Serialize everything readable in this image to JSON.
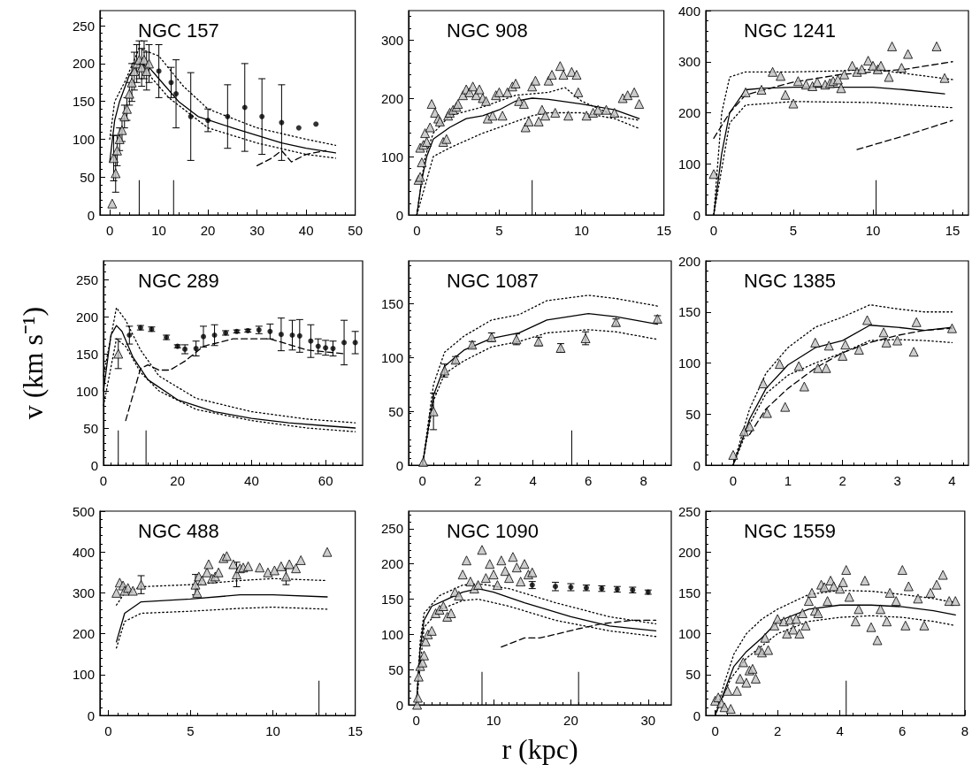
{
  "chart_data": [
    {
      "type": "scatter",
      "title": "NGC 157",
      "xlim": [
        -2,
        50
      ],
      "xticks": [
        0,
        10,
        20,
        30,
        40,
        50
      ],
      "ylim": [
        0,
        270
      ],
      "yticks": [
        0,
        50,
        100,
        150,
        200,
        250
      ],
      "series": [
        {
          "type": "scatter",
          "marker": "triangle",
          "color": "#c0c0c0",
          "x": [
            0.5,
            0.8,
            1.2,
            1.5,
            2,
            2.5,
            3,
            3.5,
            4,
            4.5,
            5,
            5.5,
            6,
            6.5,
            7,
            7.5,
            8
          ],
          "values": [
            15,
            75,
            55,
            85,
            100,
            112,
            130,
            140,
            160,
            175,
            190,
            200,
            205,
            195,
            205,
            190,
            200
          ],
          "errors": [
            null,
            30,
            25,
            20,
            15,
            15,
            15,
            15,
            15,
            25,
            25,
            25,
            25,
            25,
            25,
            25,
            25
          ]
        },
        {
          "type": "scatter",
          "marker": "circle",
          "color": "#000000",
          "x": [
            10,
            12.5,
            13.5,
            16.5,
            20,
            24,
            27.5,
            31,
            35,
            38.5,
            42
          ],
          "values": [
            190,
            175,
            160,
            130,
            125,
            130,
            142,
            130,
            122,
            115,
            120
          ],
          "errors": [
            35,
            20,
            45,
            58,
            15,
            42,
            58,
            50,
            50,
            null,
            null
          ]
        },
        {
          "type": "line",
          "marker": "none",
          "line_style": "solid",
          "color": "#000000",
          "x": [
            0,
            1,
            2,
            4,
            6,
            8,
            10,
            14,
            18,
            25,
            30,
            35,
            40,
            46
          ],
          "values": [
            70,
            125,
            150,
            185,
            200,
            195,
            180,
            150,
            130,
            115,
            105,
            95,
            88,
            82
          ]
        },
        {
          "type": "line",
          "marker": "none",
          "line_style": "dotted",
          "color": "#000000",
          "x": [
            0,
            1,
            3,
            6,
            10,
            15,
            20,
            30,
            40,
            46
          ],
          "values": [
            100,
            150,
            175,
            220,
            210,
            170,
            140,
            115,
            100,
            92
          ]
        },
        {
          "type": "line",
          "marker": "none",
          "line_style": "dotted",
          "color": "#000000",
          "x": [
            8,
            12,
            20,
            30,
            40,
            46
          ],
          "values": [
            185,
            155,
            115,
            95,
            80,
            75
          ]
        },
        {
          "type": "line",
          "marker": "none",
          "line_style": "dashed",
          "color": "#000000",
          "x": [
            30,
            33,
            35,
            37,
            40,
            44
          ],
          "values": [
            65,
            75,
            85,
            70,
            80,
            85
          ]
        }
      ],
      "ref_lines": [
        {
          "axis": "x",
          "value": 6
        },
        {
          "axis": "x",
          "value": 13
        }
      ]
    },
    {
      "type": "scatter",
      "title": "NGC 908",
      "xlim": [
        -0.5,
        15
      ],
      "xticks": [
        0,
        5,
        10,
        15
      ],
      "ylim": [
        0,
        350
      ],
      "yticks": [
        0,
        100,
        200,
        300
      ],
      "series": [
        {
          "type": "scatter",
          "marker": "triangle",
          "color": "#c0c0c0",
          "x": [
            0.1,
            0.2,
            0.3,
            0.2,
            0.4,
            0.5,
            0.6,
            0.8,
            0.9,
            1.1,
            1.3,
            1.4,
            1.6,
            1.8,
            1.9,
            2.0,
            2.2,
            2.4,
            2.5,
            2.8,
            3.0,
            3.2,
            3.4,
            3.6,
            3.8,
            4.0,
            4.2,
            4.3,
            4.6,
            4.8,
            5.0,
            5.2,
            5.5,
            5.8,
            6.0,
            6.2,
            6.5,
            6.6,
            6.8,
            7.0,
            7.2,
            7.4,
            7.6,
            7.8,
            8.0,
            8.2,
            8.4,
            8.7,
            8.9,
            9.2,
            9.4,
            9.7,
            9.8,
            10.3,
            10.7,
            11,
            11.5,
            12,
            12.5,
            12.8,
            13.2,
            13.5
          ],
          "values": [
            60,
            65,
            90,
            115,
            120,
            140,
            125,
            150,
            190,
            175,
            165,
            160,
            125,
            130,
            170,
            175,
            180,
            185,
            190,
            205,
            215,
            210,
            220,
            205,
            215,
            200,
            195,
            165,
            170,
            205,
            210,
            170,
            210,
            220,
            225,
            195,
            190,
            150,
            160,
            220,
            230,
            160,
            180,
            170,
            230,
            240,
            175,
            255,
            240,
            170,
            245,
            240,
            210,
            170,
            175,
            180,
            180,
            175,
            200,
            205,
            210,
            190
          ]
        },
        {
          "type": "line",
          "marker": "none",
          "line_style": "solid",
          "color": "#000000",
          "x": [
            0,
            0.3,
            0.6,
            1,
            2,
            3,
            4,
            5,
            6,
            7,
            8,
            10,
            12,
            13.5
          ],
          "values": [
            0,
            60,
            100,
            130,
            150,
            165,
            170,
            180,
            195,
            200,
            198,
            190,
            180,
            165
          ]
        },
        {
          "type": "line",
          "marker": "none",
          "line_style": "dotted",
          "color": "#000000",
          "x": [
            0,
            0.5,
            1,
            2,
            4,
            6,
            8,
            9,
            10,
            12,
            13.5
          ],
          "values": [
            0,
            100,
            140,
            170,
            185,
            205,
            210,
            218,
            195,
            170,
            162
          ]
        },
        {
          "type": "line",
          "marker": "none",
          "line_style": "dotted",
          "color": "#000000",
          "x": [
            0,
            1,
            2,
            4,
            6,
            7,
            8,
            10,
            12,
            13.5
          ],
          "values": [
            0,
            100,
            115,
            140,
            160,
            170,
            175,
            175,
            165,
            148
          ]
        }
      ],
      "ref_lines": [
        {
          "axis": "x",
          "value": 7
        }
      ]
    },
    {
      "type": "scatter",
      "title": "NGC 1241",
      "xlim": [
        -0.5,
        16
      ],
      "xticks": [
        0,
        5,
        10,
        15
      ],
      "ylim": [
        0,
        400
      ],
      "yticks": [
        0,
        100,
        200,
        300,
        400
      ],
      "series": [
        {
          "type": "scatter",
          "marker": "triangle",
          "color": "#c0c0c0",
          "x": [
            0,
            2,
            3,
            3.7,
            4.2,
            4.5,
            5.0,
            5.3,
            5.8,
            6.2,
            6.5,
            7,
            7.3,
            7.5,
            7.8,
            8.0,
            8.2,
            8.7,
            9,
            9.3,
            9.7,
            10,
            10.3,
            10.5,
            11,
            11.2,
            11.8,
            12.2,
            14,
            14.5
          ],
          "values": [
            80,
            240,
            245,
            280,
            272,
            235,
            218,
            262,
            255,
            252,
            260,
            255,
            258,
            262,
            265,
            248,
            275,
            292,
            280,
            285,
            302,
            292,
            285,
            292,
            270,
            330,
            288,
            315,
            330,
            268
          ]
        },
        {
          "type": "line",
          "marker": "none",
          "line_style": "solid",
          "color": "#000000",
          "x": [
            0,
            0.5,
            1,
            2,
            3,
            5,
            7,
            10,
            12,
            14.5
          ],
          "values": [
            0,
            120,
            200,
            245,
            248,
            250,
            250,
            250,
            245,
            237
          ]
        },
        {
          "type": "line",
          "marker": "none",
          "line_style": "dotted",
          "color": "#000000",
          "x": [
            0,
            0.5,
            1,
            2,
            5,
            8,
            10,
            15
          ],
          "values": [
            0,
            200,
            270,
            280,
            280,
            282,
            285,
            265
          ]
        },
        {
          "type": "line",
          "marker": "none",
          "line_style": "dotted",
          "color": "#000000",
          "x": [
            0,
            1,
            2,
            5,
            10,
            15
          ],
          "values": [
            0,
            180,
            215,
            222,
            220,
            210
          ]
        },
        {
          "type": "line",
          "marker": "none",
          "line_style": "dashed",
          "color": "#000000",
          "x": [
            0,
            1,
            2,
            5,
            8,
            12,
            15
          ],
          "values": [
            150,
            200,
            235,
            260,
            275,
            285,
            300
          ]
        },
        {
          "type": "line",
          "marker": "none",
          "line_style": "dashed",
          "color": "#000000",
          "x": [
            9,
            12,
            15
          ],
          "values": [
            128,
            155,
            185
          ]
        }
      ],
      "ref_lines": [
        {
          "axis": "x",
          "value": 10.2
        }
      ]
    },
    {
      "type": "scatter",
      "title": "NGC 289",
      "ylabel": "v (km s⁻¹)",
      "xlim": [
        0,
        70
      ],
      "xticks": [
        0,
        20,
        40,
        60
      ],
      "ylim": [
        0,
        275
      ],
      "yticks": [
        0,
        50,
        100,
        150,
        200,
        250
      ],
      "series": [
        {
          "type": "scatter",
          "marker": "triangle",
          "color": "#c0c0c0",
          "x": [
            4
          ],
          "values": [
            150
          ],
          "errors": [
            20
          ]
        },
        {
          "type": "scatter",
          "marker": "circle",
          "color": "#000000",
          "x": [
            7,
            10,
            13,
            17,
            20,
            22,
            25,
            27,
            30,
            33,
            36,
            39,
            42,
            45,
            48,
            51,
            53,
            56,
            58,
            60,
            62,
            65,
            68
          ],
          "values": [
            175,
            185,
            183,
            172,
            160,
            156,
            157,
            173,
            175,
            178,
            180,
            181,
            182,
            180,
            176,
            175,
            174,
            167,
            160,
            158,
            157,
            165,
            165
          ],
          "errors": [
            12,
            3,
            3,
            3,
            2,
            6,
            10,
            14,
            14,
            3,
            2,
            2,
            5,
            10,
            22,
            20,
            22,
            22,
            10,
            10,
            10,
            30,
            15
          ]
        },
        {
          "type": "line",
          "marker": "none",
          "line_style": "solid",
          "color": "#000000",
          "x": [
            0,
            2,
            3.5,
            5,
            8,
            12,
            20,
            30,
            40,
            50,
            60,
            68
          ],
          "values": [
            100,
            175,
            188,
            180,
            145,
            115,
            88,
            72,
            63,
            57,
            53,
            50
          ]
        },
        {
          "type": "line",
          "marker": "none",
          "line_style": "dotted",
          "color": "#000000",
          "x": [
            0,
            3.5,
            6,
            10,
            15,
            25,
            40,
            55,
            68
          ],
          "values": [
            120,
            212,
            195,
            155,
            120,
            90,
            72,
            62,
            57
          ]
        },
        {
          "type": "line",
          "marker": "none",
          "line_style": "dotted",
          "color": "#000000",
          "x": [
            0,
            3.5,
            6,
            10,
            15,
            25,
            40,
            55,
            68
          ],
          "values": [
            80,
            170,
            160,
            125,
            100,
            75,
            60,
            50,
            45
          ]
        },
        {
          "type": "line",
          "marker": "none",
          "line_style": "dashed",
          "color": "#000000",
          "x": [
            6,
            8,
            10,
            12,
            15,
            18,
            22,
            27,
            35,
            45,
            55,
            65
          ],
          "values": [
            60,
            95,
            130,
            135,
            128,
            128,
            140,
            160,
            170,
            170,
            155,
            150
          ]
        }
      ],
      "ref_lines": [
        {
          "axis": "x",
          "value": 4
        },
        {
          "axis": "x",
          "value": 11.5
        }
      ]
    },
    {
      "type": "scatter",
      "title": "NGC 1087",
      "xlim": [
        -0.5,
        9
      ],
      "xticks": [
        0,
        2,
        4,
        6,
        8
      ],
      "ylim": [
        0,
        190
      ],
      "yticks": [
        0,
        50,
        100,
        150
      ],
      "series": [
        {
          "type": "scatter",
          "marker": "triangle",
          "color": "#c0c0c0",
          "x": [
            0.03,
            0.4,
            0.8,
            1.2,
            1.8,
            2.5,
            3.4,
            4.2,
            5.0,
            5.9,
            7,
            8.5
          ],
          "values": [
            3,
            50,
            88,
            98,
            112,
            119,
            117,
            115,
            109,
            118,
            133,
            136
          ],
          "errors": [
            null,
            17,
            6,
            3,
            3,
            4,
            5,
            4,
            4,
            6,
            3,
            3
          ]
        },
        {
          "type": "line",
          "marker": "none",
          "line_style": "solid",
          "color": "#000000",
          "x": [
            0,
            0.4,
            0.8,
            1.5,
            2.5,
            3.5,
            4.5,
            6,
            7,
            8.5
          ],
          "values": [
            0,
            65,
            92,
            107,
            118,
            123,
            135,
            141,
            138,
            131
          ]
        },
        {
          "type": "line",
          "marker": "none",
          "line_style": "dotted",
          "color": "#000000",
          "x": [
            0,
            0.4,
            0.8,
            1.5,
            2.5,
            3.5,
            4.5,
            6,
            7,
            8.5
          ],
          "values": [
            0,
            75,
            105,
            120,
            135,
            140,
            153,
            158,
            155,
            148
          ]
        },
        {
          "type": "line",
          "marker": "none",
          "line_style": "dotted",
          "color": "#000000",
          "x": [
            0,
            0.4,
            0.8,
            1.5,
            2.5,
            3.5,
            4.5,
            6,
            7,
            8.5
          ],
          "values": [
            0,
            60,
            85,
            97,
            110,
            115,
            123,
            126,
            124,
            117
          ]
        }
      ],
      "ref_lines": [
        {
          "axis": "x",
          "value": 5.4
        }
      ]
    },
    {
      "type": "scatter",
      "title": "NGC 1385",
      "xlim": [
        -0.5,
        4.3
      ],
      "xticks": [
        0,
        1,
        2,
        3,
        4
      ],
      "ylim": [
        0,
        200
      ],
      "yticks": [
        0,
        50,
        100,
        150,
        200
      ],
      "series": [
        {
          "type": "scatter",
          "marker": "triangle",
          "color": "#c0c0c0",
          "x": [
            0,
            0.2,
            0.3,
            0.55,
            0.62,
            0.85,
            0.95,
            1.2,
            1.3,
            1.5,
            1.55,
            1.7,
            1.75,
            2.0,
            2.05,
            2.3,
            2.45,
            2.75,
            2.8,
            3.0,
            3.3,
            3.35,
            4
          ],
          "values": [
            10,
            33,
            38,
            80,
            51,
            99,
            57,
            97,
            77,
            120,
            95,
            95,
            117,
            107,
            118,
            113,
            142,
            130,
            120,
            122,
            111,
            140,
            134
          ]
        },
        {
          "type": "line",
          "marker": "none",
          "line_style": "solid",
          "color": "#000000",
          "x": [
            0,
            0.3,
            0.6,
            1,
            1.5,
            2,
            2.5,
            3,
            3.5,
            4
          ],
          "values": [
            0,
            45,
            75,
            98,
            115,
            122,
            137,
            135,
            132,
            135
          ]
        },
        {
          "type": "line",
          "marker": "none",
          "line_style": "dotted",
          "color": "#000000",
          "x": [
            0,
            0.3,
            0.6,
            1,
            1.5,
            2,
            2.5,
            3,
            3.5,
            4
          ],
          "values": [
            0,
            55,
            90,
            115,
            135,
            145,
            157,
            153,
            150,
            150
          ]
        },
        {
          "type": "line",
          "marker": "none",
          "line_style": "dotted",
          "color": "#000000",
          "x": [
            0,
            0.3,
            0.6,
            1,
            1.5,
            2,
            2.5,
            3,
            3.5,
            4
          ],
          "values": [
            0,
            40,
            70,
            88,
            100,
            110,
            122,
            123,
            122,
            120
          ]
        },
        {
          "type": "line",
          "marker": "none",
          "line_style": "dashed",
          "color": "#000000",
          "x": [
            0.3,
            0.6,
            1,
            1.5,
            2,
            2.5,
            3,
            3.5,
            4
          ],
          "values": [
            30,
            55,
            75,
            95,
            110,
            120,
            127,
            132,
            134
          ]
        }
      ]
    },
    {
      "type": "scatter",
      "title": "NGC 488",
      "xlim": [
        -0.5,
        15
      ],
      "xticks": [
        0,
        5,
        10,
        15
      ],
      "ylim": [
        0,
        500
      ],
      "yticks": [
        0,
        100,
        200,
        300,
        400,
        500
      ],
      "series": [
        {
          "type": "scatter",
          "marker": "triangle",
          "color": "#c0c0c0",
          "x": [
            0.5,
            0.7,
            0.9,
            1.0,
            1.2,
            1.5,
            2.0,
            5.3,
            5.4,
            5.5,
            5.7,
            6,
            6.1,
            6.3,
            6.5,
            6.7,
            7,
            7.2,
            7.6,
            7.8,
            8,
            8.2,
            8.5,
            9.2,
            9.7,
            10.1,
            10.5,
            10.8,
            11,
            11.4,
            11.7,
            13.3
          ],
          "values": [
            300,
            325,
            318,
            305,
            312,
            305,
            320,
            320,
            300,
            340,
            330,
            350,
            370,
            335,
            340,
            350,
            385,
            390,
            370,
            345,
            360,
            362,
            365,
            362,
            350,
            355,
            365,
            340,
            370,
            360,
            380,
            400
          ],
          "errors": [
            null,
            null,
            null,
            null,
            null,
            null,
            22,
            25,
            null,
            null,
            null,
            null,
            null,
            null,
            null,
            null,
            null,
            null,
            null,
            30,
            null,
            null,
            null,
            null,
            null,
            null,
            null,
            20,
            null,
            null,
            null,
            null
          ]
        },
        {
          "type": "line",
          "marker": "none",
          "line_style": "solid",
          "color": "#000000",
          "x": [
            0.5,
            1,
            2,
            5,
            8,
            10,
            13.3
          ],
          "values": [
            180,
            250,
            278,
            285,
            295,
            295,
            290
          ]
        },
        {
          "type": "line",
          "marker": "none",
          "line_style": "dotted",
          "color": "#000000",
          "x": [
            0.5,
            1,
            2,
            5,
            8,
            10,
            13.3
          ],
          "values": [
            270,
            300,
            315,
            320,
            330,
            335,
            330
          ]
        },
        {
          "type": "line",
          "marker": "none",
          "line_style": "dotted",
          "color": "#000000",
          "x": [
            0.5,
            1,
            2,
            5,
            8,
            10,
            13.3
          ],
          "values": [
            165,
            230,
            250,
            255,
            262,
            265,
            260
          ]
        }
      ],
      "ref_lines": [
        {
          "axis": "x",
          "value": 12.8
        }
      ]
    },
    {
      "type": "scatter",
      "title": "NGC 1090",
      "xlabel": "r (kpc)",
      "xlim": [
        -1,
        33
      ],
      "xticks": [
        0,
        10,
        20,
        30
      ],
      "ylim": [
        0,
        275
      ],
      "yticks": [
        0,
        50,
        100,
        150,
        200,
        250
      ],
      "series": [
        {
          "type": "scatter",
          "marker": "triangle",
          "color": "#c0c0c0",
          "x": [
            0.1,
            0.2,
            0.3,
            0.5,
            0.8,
            1,
            1.2,
            1.5,
            2,
            2.5,
            3,
            3.5,
            4,
            4.5,
            5,
            5.5,
            6,
            6.5,
            7,
            7.5,
            8,
            8.5,
            9,
            9.5,
            10,
            10.5,
            11,
            11.5,
            12,
            12.5,
            13,
            13.5,
            14,
            14.5,
            15
          ],
          "values": [
            0,
            10,
            40,
            55,
            60,
            70,
            90,
            100,
            105,
            130,
            135,
            140,
            125,
            130,
            160,
            155,
            185,
            205,
            175,
            165,
            170,
            220,
            180,
            200,
            185,
            170,
            205,
            190,
            180,
            210,
            195,
            175,
            200,
            185,
            188
          ]
        },
        {
          "type": "scatter",
          "marker": "circle",
          "color": "#000000",
          "x": [
            15,
            18,
            20,
            22,
            24,
            26,
            28,
            30
          ],
          "values": [
            170,
            168,
            167,
            166,
            165,
            164,
            163,
            160
          ],
          "errors": [
            5,
            6,
            5,
            4,
            4,
            4,
            4,
            3
          ]
        },
        {
          "type": "line",
          "marker": "none",
          "line_style": "solid",
          "color": "#000000",
          "x": [
            0,
            0.5,
            1,
            2,
            4,
            6,
            8,
            10,
            14,
            20,
            25,
            31
          ],
          "values": [
            0,
            80,
            120,
            140,
            150,
            160,
            165,
            160,
            145,
            125,
            112,
            105
          ]
        },
        {
          "type": "line",
          "marker": "none",
          "line_style": "dotted",
          "color": "#000000",
          "x": [
            0,
            0.5,
            1,
            3,
            6,
            8,
            12,
            18,
            25,
            31
          ],
          "values": [
            0,
            90,
            130,
            155,
            170,
            172,
            165,
            145,
            125,
            115
          ]
        },
        {
          "type": "line",
          "marker": "none",
          "line_style": "dotted",
          "color": "#000000",
          "x": [
            0,
            1,
            3,
            6,
            8,
            12,
            18,
            25,
            31
          ],
          "values": [
            0,
            110,
            135,
            148,
            150,
            140,
            120,
            105,
            97
          ]
        },
        {
          "type": "line",
          "marker": "none",
          "line_style": "dashed",
          "color": "#000000",
          "x": [
            11,
            14,
            16,
            18,
            21,
            24,
            28,
            31
          ],
          "values": [
            82,
            95,
            95,
            100,
            108,
            115,
            120,
            120
          ]
        }
      ],
      "ref_lines": [
        {
          "axis": "x",
          "value": 8.5
        },
        {
          "axis": "x",
          "value": 21
        }
      ]
    },
    {
      "type": "scatter",
      "title": "NGC 1559",
      "xlim": [
        -0.3,
        8
      ],
      "xticks": [
        0,
        2,
        4,
        6,
        8
      ],
      "ylim": [
        0,
        250
      ],
      "yticks": [
        0,
        50,
        100,
        150,
        200,
        250
      ],
      "series": [
        {
          "type": "scatter",
          "marker": "triangle",
          "color": "#c0c0c0",
          "x": [
            0,
            0.1,
            0.2,
            0.3,
            0.4,
            0.5,
            0.7,
            0.8,
            0.9,
            1,
            1.1,
            1.2,
            1.3,
            1.4,
            1.5,
            1.6,
            1.7,
            1.9,
            2.0,
            2.2,
            2.3,
            2.4,
            2.5,
            2.6,
            2.7,
            2.8,
            2.9,
            3.0,
            3.1,
            3.2,
            3.3,
            3.4,
            3.5,
            3.6,
            3.7,
            3.8,
            4.0,
            4.1,
            4.2,
            4.3,
            4.5,
            4.6,
            4.8,
            5.0,
            5.2,
            5.3,
            5.5,
            5.6,
            5.8,
            6.0,
            6.1,
            6.2,
            6.5,
            6.7,
            6.9,
            7.1,
            7.3,
            7.5,
            7.7
          ],
          "values": [
            18,
            22,
            15,
            10,
            30,
            8,
            30,
            45,
            65,
            40,
            55,
            57,
            45,
            80,
            77,
            95,
            80,
            110,
            118,
            115,
            100,
            117,
            105,
            118,
            100,
            125,
            110,
            140,
            150,
            128,
            125,
            160,
            157,
            140,
            165,
            158,
            155,
            163,
            178,
            145,
            115,
            130,
            165,
            108,
            92,
            130,
            115,
            150,
            140,
            178,
            110,
            158,
            143,
            110,
            150,
            160,
            172,
            140,
            140
          ]
        },
        {
          "type": "line",
          "marker": "none",
          "line_style": "solid",
          "color": "#000000",
          "x": [
            0,
            0.3,
            0.6,
            1,
            1.5,
            2,
            3,
            4,
            5,
            6,
            7,
            7.7
          ],
          "values": [
            0,
            30,
            60,
            78,
            95,
            115,
            130,
            135,
            135,
            133,
            128,
            123
          ]
        },
        {
          "type": "line",
          "marker": "none",
          "line_style": "dotted",
          "color": "#000000",
          "x": [
            0,
            0.3,
            0.6,
            1,
            1.5,
            2,
            3,
            4,
            5,
            6,
            7,
            7.7
          ],
          "values": [
            0,
            40,
            75,
            100,
            118,
            130,
            148,
            153,
            152,
            148,
            143,
            138
          ]
        },
        {
          "type": "line",
          "marker": "none",
          "line_style": "dotted",
          "color": "#000000",
          "x": [
            0,
            0.5,
            1,
            2,
            3,
            4,
            5,
            6,
            7,
            7.7
          ],
          "values": [
            0,
            45,
            70,
            100,
            115,
            120,
            122,
            120,
            115,
            110
          ]
        }
      ],
      "ref_lines": [
        {
          "axis": "x",
          "value": 4.2
        }
      ]
    }
  ]
}
